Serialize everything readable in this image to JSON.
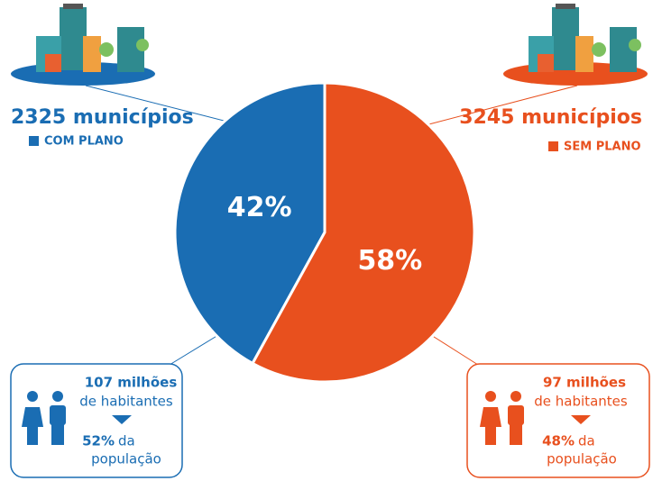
{
  "chart_data": {
    "type": "pie",
    "categories": [
      "COM PLANO",
      "SEM PLANO"
    ],
    "values": [
      42,
      58
    ],
    "value_labels": [
      "42%",
      "58%"
    ],
    "colors": [
      "#1a6db3",
      "#e8501e"
    ],
    "groups": [
      {
        "count": "2325 municípios",
        "population": "107 milhões",
        "population_unit": "de habitantes",
        "share": "52%",
        "share_suffix": "da",
        "share_unit": "população"
      },
      {
        "count": "3245 municípios",
        "population": "97 milhões",
        "population_unit": "de habitantes",
        "share": "48%",
        "share_suffix": "da",
        "share_unit": "população"
      }
    ]
  }
}
